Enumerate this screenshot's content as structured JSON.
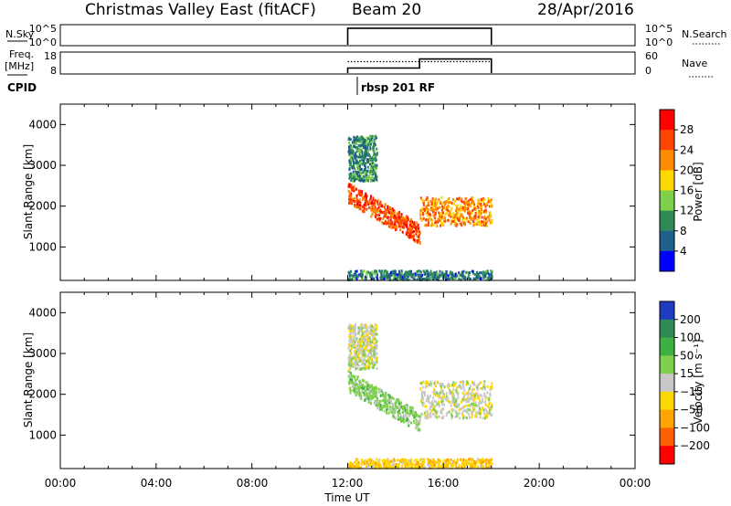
{
  "header": {
    "station": "Christmas Valley East (fitACF)",
    "beam": "Beam 20",
    "date": "28/Apr/2016"
  },
  "panels": {
    "nsky": {
      "left_label": "N.Sky",
      "left_ticks": [
        "10^5",
        "10^0"
      ],
      "right_ticks": [
        "10^5",
        "10^0"
      ],
      "right_label": "N.Search"
    },
    "freq": {
      "left_label_1": "Freq.",
      "left_label_2": "[MHz]",
      "left_ticks": [
        "18",
        "8"
      ],
      "right_ticks": [
        "60",
        "0"
      ],
      "right_label": "Nave"
    },
    "cpid": {
      "label": "CPID",
      "program": "rbsp 201 RF"
    }
  },
  "axes": {
    "xlabel": "Time UT",
    "x_ticks": [
      "00:00",
      "04:00",
      "08:00",
      "12:00",
      "16:00",
      "20:00",
      "00:00"
    ],
    "ylabel": "Slant Range [km]",
    "y_ticks": [
      "4000",
      "3000",
      "2000",
      "1000"
    ]
  },
  "colorbars": {
    "power": {
      "label": "Power [dB]",
      "ticks": [
        "28",
        "24",
        "20",
        "16",
        "12",
        "8",
        "4"
      ],
      "colors": [
        "#ff0000",
        "#ff4500",
        "#ff8c00",
        "#ffd700",
        "#7fd04a",
        "#2e8b57",
        "#1f5f8b",
        "#0000ff"
      ]
    },
    "velocity": {
      "label": "Velocity [m s⁻¹]",
      "ticks": [
        "200",
        "100",
        "50",
        "15",
        "−15",
        "−50",
        "−100",
        "−200"
      ],
      "colors": [
        "#1f3bbf",
        "#2e8b57",
        "#3cb043",
        "#7fd04a",
        "#c8c8c8",
        "#ffd700",
        "#ffa500",
        "#ff6000",
        "#ff0000"
      ]
    }
  },
  "chart_data": [
    {
      "type": "line",
      "title": "N.Sky / N.Search",
      "x": [
        12.0,
        18.0
      ],
      "ylim": [
        0,
        5
      ],
      "series": [
        {
          "name": "N.Sky",
          "values": [
            4.3,
            4.3
          ]
        },
        {
          "name": "N.Search",
          "values": [
            null,
            null
          ]
        }
      ]
    },
    {
      "type": "line",
      "title": "Freq. / Nave",
      "xlim": [
        0,
        24
      ],
      "series": [
        {
          "name": "Freq.",
          "x": [
            12.0,
            15.0,
            15.0,
            18.0
          ],
          "values": [
            10.5,
            10.5,
            15.0,
            15.0
          ]
        },
        {
          "name": "Nave",
          "x": [
            12.0,
            18.0
          ],
          "values": [
            34,
            34
          ]
        }
      ]
    },
    {
      "type": "heatmap",
      "title": "Power",
      "xlabel": "Time UT",
      "ylabel": "Slant Range [km]",
      "xlim": [
        0,
        24
      ],
      "ylim": [
        180,
        4500
      ],
      "scatter_regions": [
        {
          "t": [
            12.0,
            15.0
          ],
          "range_start": 2300,
          "range_end": 1300,
          "power_dB": 26
        },
        {
          "t": [
            15.0,
            18.0
          ],
          "range": [
            1500,
            2200
          ],
          "power_dB": 22
        },
        {
          "t": [
            12.0,
            13.2
          ],
          "range": [
            2600,
            3700
          ],
          "power_dB": 9
        },
        {
          "t": [
            12.0,
            18.0
          ],
          "range": [
            180,
            400
          ],
          "power_dB": 8
        }
      ]
    },
    {
      "type": "heatmap",
      "title": "Velocity",
      "xlabel": "Time UT",
      "ylabel": "Slant Range [km]",
      "xlim": [
        0,
        24
      ],
      "ylim": [
        180,
        4500
      ],
      "scatter_regions": [
        {
          "t": [
            12.0,
            15.0
          ],
          "range_start": 2300,
          "range_end": 1300,
          "velocity": 30
        },
        {
          "t": [
            15.0,
            18.0
          ],
          "range": [
            1400,
            2300
          ],
          "velocity": 0
        },
        {
          "t": [
            12.0,
            13.2
          ],
          "range": [
            2600,
            3700
          ],
          "velocity": 0
        },
        {
          "t": [
            12.0,
            18.0
          ],
          "range": [
            180,
            400
          ],
          "velocity": -40
        }
      ]
    }
  ]
}
